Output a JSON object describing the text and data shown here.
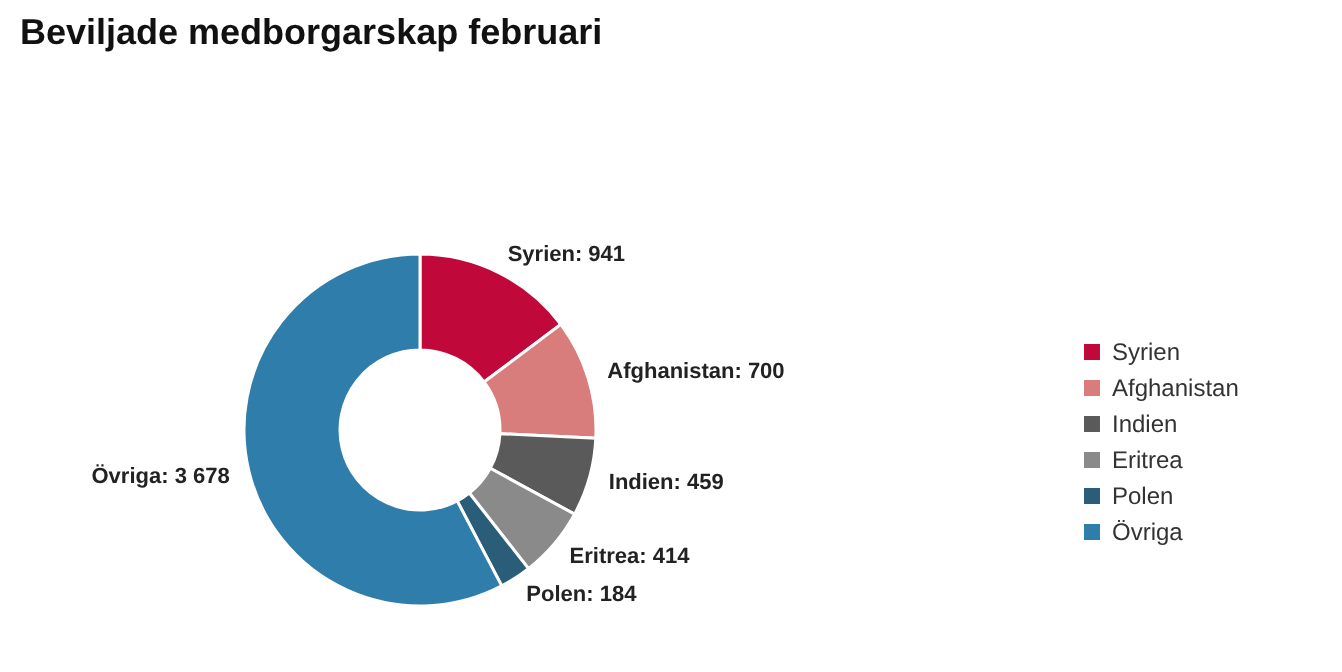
{
  "chart_data": {
    "type": "donut",
    "title": "Beviljade medborgarskap februari",
    "categories": [
      "Syrien",
      "Afghanistan",
      "Indien",
      "Eritrea",
      "Polen",
      "Övriga"
    ],
    "values": [
      941,
      700,
      459,
      414,
      184,
      3678
    ],
    "value_labels": [
      "Syrien: 941",
      "Afghanistan: 700",
      "Indien: 459",
      "Eritrea: 414",
      "Polen: 184",
      "Övriga: 3 678"
    ],
    "colors": [
      "#c0093a",
      "#d97c7c",
      "#5a5a5a",
      "#8a8a8a",
      "#2a5d78",
      "#2e7dab"
    ],
    "legend": "right"
  }
}
